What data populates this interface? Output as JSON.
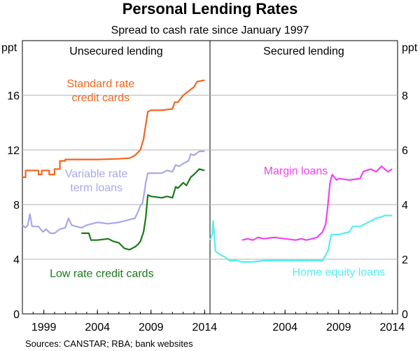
{
  "title": "Personal Lending Rates",
  "subtitle": "Spread to cash rate since January 1997",
  "source": "Sources: CANSTAR; RBA; bank websites",
  "chart_data": [
    {
      "type": "line",
      "panel_title": "Unsecured lending",
      "ylabel": "ppt",
      "xlim": [
        1997,
        2014.5
      ],
      "ylim": [
        0,
        20
      ],
      "yticks": [
        0,
        4,
        8,
        12,
        16
      ],
      "xticks": [
        1999,
        2004,
        2009,
        2014
      ],
      "series": [
        {
          "name": "Standard rate credit cards",
          "label_lines": [
            "Standard rate",
            "credit cards"
          ],
          "color": "#f26522",
          "points": [
            [
              1997.0,
              10.0
            ],
            [
              1997.3,
              10.0
            ],
            [
              1997.3,
              10.5
            ],
            [
              1998.5,
              10.5
            ],
            [
              1998.5,
              10.2
            ],
            [
              1998.8,
              10.2
            ],
            [
              1998.8,
              10.5
            ],
            [
              1999.5,
              10.5
            ],
            [
              1999.5,
              10.2
            ],
            [
              2000.0,
              10.2
            ],
            [
              2000.0,
              10.6
            ],
            [
              2000.5,
              10.6
            ],
            [
              2000.5,
              11.2
            ],
            [
              2001.0,
              11.2
            ],
            [
              2001.0,
              11.3
            ],
            [
              2002.0,
              11.3
            ],
            [
              2004.0,
              11.3
            ],
            [
              2006.0,
              11.35
            ],
            [
              2007.0,
              11.4
            ],
            [
              2007.5,
              11.6
            ],
            [
              2008.0,
              12.0
            ],
            [
              2008.3,
              12.8
            ],
            [
              2008.5,
              13.8
            ],
            [
              2008.7,
              14.8
            ],
            [
              2009.0,
              14.9
            ],
            [
              2010.0,
              14.9
            ],
            [
              2011.0,
              15.0
            ],
            [
              2011.2,
              15.5
            ],
            [
              2011.5,
              15.5
            ],
            [
              2012.0,
              16.0
            ],
            [
              2012.5,
              16.3
            ],
            [
              2013.0,
              16.6
            ],
            [
              2013.3,
              17.0
            ],
            [
              2014.0,
              17.1
            ]
          ]
        },
        {
          "name": "Variable rate term loans",
          "label_lines": [
            "Variable rate",
            "term loans"
          ],
          "color": "#a8a8e8",
          "points": [
            [
              1997.0,
              6.5
            ],
            [
              1997.3,
              6.3
            ],
            [
              1997.5,
              6.5
            ],
            [
              1997.7,
              7.3
            ],
            [
              1997.9,
              6.4
            ],
            [
              1998.5,
              6.4
            ],
            [
              1998.9,
              6.0
            ],
            [
              1999.2,
              6.2
            ],
            [
              1999.6,
              5.9
            ],
            [
              2000.0,
              5.9
            ],
            [
              2000.5,
              6.2
            ],
            [
              2001.0,
              6.3
            ],
            [
              2001.3,
              7.0
            ],
            [
              2001.6,
              6.5
            ],
            [
              2002.0,
              6.4
            ],
            [
              2002.5,
              6.3
            ],
            [
              2003.0,
              6.5
            ],
            [
              2004.0,
              6.7
            ],
            [
              2005.0,
              6.6
            ],
            [
              2006.0,
              6.7
            ],
            [
              2006.5,
              6.8
            ],
            [
              2007.0,
              6.9
            ],
            [
              2007.5,
              7.0
            ],
            [
              2007.8,
              7.5
            ],
            [
              2008.0,
              7.9
            ],
            [
              2008.2,
              8.1
            ],
            [
              2008.4,
              9.0
            ],
            [
              2008.5,
              9.6
            ],
            [
              2008.7,
              10.3
            ],
            [
              2009.0,
              10.3
            ],
            [
              2010.0,
              10.3
            ],
            [
              2010.5,
              10.5
            ],
            [
              2011.0,
              10.4
            ],
            [
              2011.3,
              10.9
            ],
            [
              2011.6,
              10.8
            ],
            [
              2012.0,
              11.0
            ],
            [
              2012.5,
              11.2
            ],
            [
              2012.7,
              11.7
            ],
            [
              2013.0,
              11.6
            ],
            [
              2013.5,
              11.9
            ],
            [
              2014.0,
              11.9
            ]
          ]
        },
        {
          "name": "Low rate credit cards",
          "label_lines": [
            "Low rate credit cards"
          ],
          "color": "#1a7a1a",
          "points": [
            [
              2002.5,
              5.9
            ],
            [
              2003.2,
              5.9
            ],
            [
              2003.4,
              5.4
            ],
            [
              2004.0,
              5.4
            ],
            [
              2005.0,
              5.5
            ],
            [
              2005.5,
              5.3
            ],
            [
              2006.0,
              5.2
            ],
            [
              2006.5,
              4.8
            ],
            [
              2007.0,
              4.7
            ],
            [
              2007.5,
              4.9
            ],
            [
              2007.8,
              5.1
            ],
            [
              2008.0,
              5.3
            ],
            [
              2008.3,
              6.0
            ],
            [
              2008.5,
              7.0
            ],
            [
              2008.7,
              8.7
            ],
            [
              2009.0,
              8.6
            ],
            [
              2010.0,
              8.5
            ],
            [
              2010.5,
              8.6
            ],
            [
              2011.0,
              8.5
            ],
            [
              2011.3,
              9.3
            ],
            [
              2011.5,
              9.2
            ],
            [
              2012.0,
              9.6
            ],
            [
              2012.3,
              9.4
            ],
            [
              2012.7,
              10.0
            ],
            [
              2013.0,
              10.2
            ],
            [
              2013.5,
              10.6
            ],
            [
              2014.0,
              10.5
            ]
          ]
        }
      ]
    },
    {
      "type": "line",
      "panel_title": "Secured lending",
      "ylabel": "ppt",
      "xlim": [
        1997,
        2014.5
      ],
      "ylim": [
        0,
        10
      ],
      "yticks": [
        0,
        2,
        4,
        6,
        8
      ],
      "xticks": [
        2004,
        2009,
        2014
      ],
      "series": [
        {
          "name": "Margin loans",
          "label_lines": [
            "Margin loans"
          ],
          "color": "#ee44ee",
          "points": [
            [
              2000.0,
              2.7
            ],
            [
              2000.5,
              2.75
            ],
            [
              2001.0,
              2.7
            ],
            [
              2001.5,
              2.8
            ],
            [
              2002.0,
              2.75
            ],
            [
              2003.0,
              2.8
            ],
            [
              2004.0,
              2.75
            ],
            [
              2005.0,
              2.7
            ],
            [
              2005.5,
              2.75
            ],
            [
              2006.0,
              2.7
            ],
            [
              2006.5,
              2.75
            ],
            [
              2007.0,
              2.8
            ],
            [
              2007.5,
              3.0
            ],
            [
              2007.8,
              3.3
            ],
            [
              2008.0,
              4.0
            ],
            [
              2008.2,
              4.8
            ],
            [
              2008.4,
              5.1
            ],
            [
              2008.6,
              5.0
            ],
            [
              2008.8,
              4.9
            ],
            [
              2009.0,
              4.95
            ],
            [
              2010.0,
              4.9
            ],
            [
              2011.0,
              4.95
            ],
            [
              2011.3,
              5.2
            ],
            [
              2011.6,
              5.25
            ],
            [
              2012.0,
              5.3
            ],
            [
              2012.5,
              5.2
            ],
            [
              2013.0,
              5.4
            ],
            [
              2013.3,
              5.3
            ],
            [
              2013.6,
              5.2
            ],
            [
              2014.0,
              5.3
            ]
          ]
        },
        {
          "name": "Home equity loans",
          "label_lines": [
            "Home equity loans"
          ],
          "color": "#55eeee",
          "points": [
            [
              1997.0,
              2.7
            ],
            [
              1997.2,
              2.9
            ],
            [
              1997.3,
              3.4
            ],
            [
              1997.5,
              2.3
            ],
            [
              1997.8,
              2.2
            ],
            [
              1998.3,
              2.1
            ],
            [
              1998.8,
              1.95
            ],
            [
              1999.5,
              1.95
            ],
            [
              2000.0,
              1.9
            ],
            [
              2001.0,
              1.9
            ],
            [
              2002.0,
              1.95
            ],
            [
              2004.0,
              1.95
            ],
            [
              2006.0,
              1.95
            ],
            [
              2007.5,
              1.95
            ],
            [
              2008.0,
              2.3
            ],
            [
              2008.3,
              2.9
            ],
            [
              2009.0,
              2.9
            ],
            [
              2010.0,
              3.0
            ],
            [
              2010.3,
              3.2
            ],
            [
              2011.0,
              3.2
            ],
            [
              2011.5,
              3.3
            ],
            [
              2012.0,
              3.4
            ],
            [
              2012.5,
              3.5
            ],
            [
              2013.0,
              3.55
            ],
            [
              2013.3,
              3.6
            ],
            [
              2014.0,
              3.6
            ]
          ]
        }
      ]
    }
  ]
}
